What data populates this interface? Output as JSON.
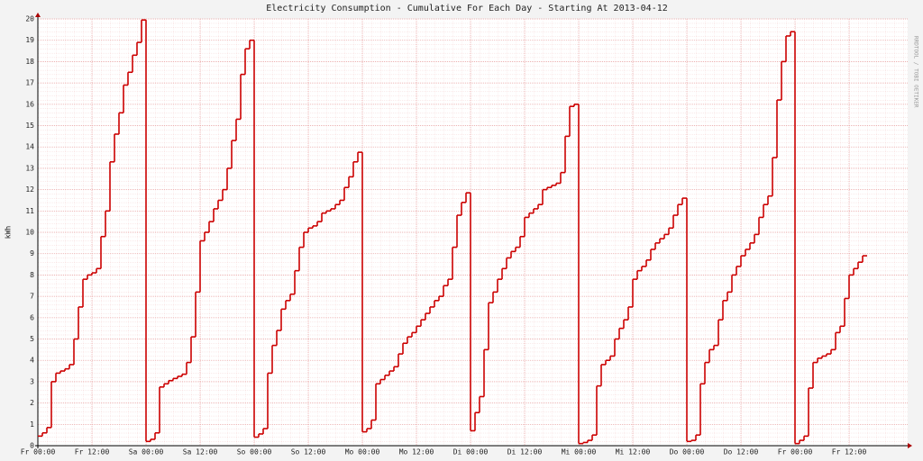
{
  "chart_data": {
    "type": "step",
    "title": "Electricity Consumption - Cumulative For Each Day - Starting At 2013-04-12",
    "y_label": "kWh",
    "watermark": "RRDTOOL / TOBI OETIKER",
    "x": [
      0,
      1,
      2,
      3,
      4,
      5,
      6,
      7,
      8,
      9,
      10,
      11,
      12,
      13,
      14,
      15,
      16,
      17,
      18,
      19,
      20,
      21,
      22,
      23,
      24,
      25,
      26,
      27,
      28,
      29,
      30,
      31,
      32,
      33,
      34,
      35,
      36,
      37,
      38,
      39,
      40,
      41,
      42,
      43,
      44,
      45,
      46,
      47,
      48,
      49,
      50,
      51,
      52,
      53,
      54,
      55,
      56,
      57,
      58,
      59,
      60,
      61,
      62,
      63,
      64,
      65,
      66,
      67,
      68,
      69,
      70,
      71,
      72,
      73,
      74,
      75,
      76,
      77,
      78,
      79,
      80,
      81,
      82,
      83,
      84,
      85,
      86,
      87,
      88,
      89,
      90,
      91,
      92,
      93,
      94,
      95,
      96,
      97,
      98,
      99,
      100,
      101,
      102,
      103,
      104,
      105,
      106,
      107,
      108,
      109,
      110,
      111,
      112,
      113,
      114,
      115,
      116,
      117,
      118,
      119,
      120,
      121,
      122,
      123,
      124,
      125,
      126,
      127,
      128,
      129,
      130,
      131,
      132,
      133,
      134,
      135,
      136,
      137,
      138,
      139,
      140,
      141,
      142,
      143,
      144,
      145,
      146,
      147,
      148,
      149,
      150,
      151,
      152,
      153,
      154,
      155,
      156,
      157,
      158,
      159,
      160,
      161,
      162,
      163,
      164,
      165,
      166,
      167,
      168,
      169,
      170,
      171,
      172,
      173,
      174,
      175,
      176,
      177,
      178,
      179,
      180,
      181,
      182,
      183
    ],
    "series": [
      {
        "name": "kWh",
        "color": "#cc0000",
        "values": [
          0.45,
          0.6,
          0.85,
          3.0,
          3.4,
          3.5,
          3.6,
          3.8,
          5.0,
          6.5,
          7.8,
          8.0,
          8.1,
          8.3,
          9.8,
          11.0,
          13.3,
          14.6,
          15.6,
          16.9,
          17.5,
          18.3,
          18.9,
          19.95,
          0.2,
          0.3,
          0.6,
          2.75,
          2.9,
          3.05,
          3.15,
          3.25,
          3.35,
          3.9,
          5.1,
          7.2,
          9.6,
          10.0,
          10.5,
          11.1,
          11.5,
          12.0,
          13.0,
          14.3,
          15.3,
          17.4,
          18.6,
          19.0,
          0.4,
          0.55,
          0.8,
          3.4,
          4.7,
          5.4,
          6.4,
          6.8,
          7.1,
          8.2,
          9.3,
          10.0,
          10.2,
          10.3,
          10.5,
          10.9,
          11.0,
          11.1,
          11.3,
          11.5,
          12.1,
          12.6,
          13.3,
          13.75,
          0.65,
          0.8,
          1.2,
          2.9,
          3.1,
          3.3,
          3.5,
          3.7,
          4.3,
          4.8,
          5.1,
          5.3,
          5.6,
          5.9,
          6.2,
          6.5,
          6.8,
          7.0,
          7.5,
          7.8,
          9.3,
          10.8,
          11.4,
          11.85,
          0.7,
          1.55,
          2.3,
          4.5,
          6.7,
          7.2,
          7.8,
          8.3,
          8.8,
          9.1,
          9.3,
          9.8,
          10.7,
          10.9,
          11.1,
          11.3,
          12.0,
          12.1,
          12.2,
          12.3,
          12.8,
          14.5,
          15.9,
          16.0,
          0.1,
          0.15,
          0.25,
          0.5,
          2.8,
          3.8,
          4.0,
          4.2,
          5.0,
          5.5,
          5.9,
          6.5,
          7.8,
          8.2,
          8.4,
          8.7,
          9.2,
          9.5,
          9.7,
          9.9,
          10.2,
          10.8,
          11.3,
          11.6,
          0.2,
          0.25,
          0.5,
          2.9,
          3.9,
          4.5,
          4.7,
          5.9,
          6.8,
          7.2,
          8.0,
          8.4,
          8.9,
          9.2,
          9.5,
          9.9,
          10.7,
          11.3,
          11.7,
          13.5,
          16.2,
          18.0,
          19.2,
          19.4,
          0.1,
          0.25,
          0.45,
          2.7,
          3.9,
          4.1,
          4.2,
          4.3,
          4.5,
          5.3,
          5.6,
          6.9,
          8.0,
          8.3,
          8.6,
          8.9
        ]
      }
    ],
    "xlim": [
      0,
      193
    ],
    "ylim": [
      0,
      20
    ],
    "yticks": [
      0,
      1,
      2,
      3,
      4,
      5,
      6,
      7,
      8,
      9,
      10,
      11,
      12,
      13,
      14,
      15,
      16,
      17,
      18,
      19,
      20
    ],
    "xticks": [
      {
        "value": 0,
        "label": "Fr 00:00"
      },
      {
        "value": 12,
        "label": "Fr 12:00"
      },
      {
        "value": 24,
        "label": "Sa 00:00"
      },
      {
        "value": 36,
        "label": "Sa 12:00"
      },
      {
        "value": 48,
        "label": "So 00:00"
      },
      {
        "value": 60,
        "label": "So 12:00"
      },
      {
        "value": 72,
        "label": "Mo 00:00"
      },
      {
        "value": 84,
        "label": "Mo 12:00"
      },
      {
        "value": 96,
        "label": "Di 00:00"
      },
      {
        "value": 108,
        "label": "Di 12:00"
      },
      {
        "value": 120,
        "label": "Mi 00:00"
      },
      {
        "value": 132,
        "label": "Mi 12:00"
      },
      {
        "value": 144,
        "label": "Do 00:00"
      },
      {
        "value": 156,
        "label": "Do 12:00"
      },
      {
        "value": 168,
        "label": "Fr 00:00"
      },
      {
        "value": 180,
        "label": "Fr 12:00"
      }
    ],
    "grid": true
  }
}
